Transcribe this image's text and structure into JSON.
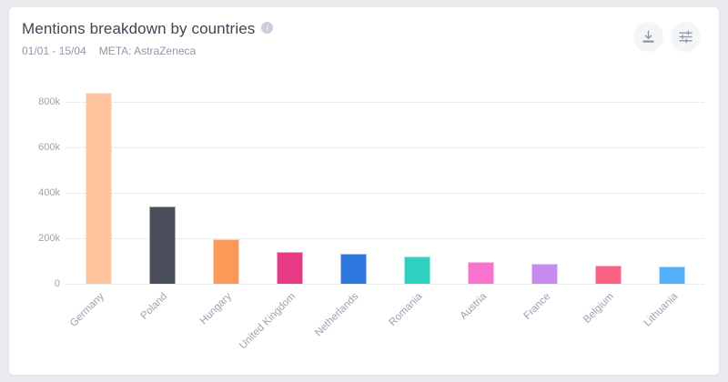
{
  "header": {
    "title": "Mentions breakdown by countries",
    "info_icon": "i",
    "date_range": "01/01 - 15/04",
    "meta": "META: AstraZeneca"
  },
  "toolbar": {
    "download_icon": "download-icon",
    "settings_icon": "sliders-icon"
  },
  "chart_data": {
    "type": "bar",
    "title": "Mentions breakdown by countries",
    "categories": [
      "Germany",
      "Poland",
      "Hungary",
      "United Kingdom",
      "Netherlands",
      "Romania",
      "Austria",
      "France",
      "Belgium",
      "Lithuania"
    ],
    "values": [
      840000,
      340000,
      197000,
      140000,
      132000,
      120000,
      98000,
      88000,
      80000,
      76000
    ],
    "bar_colors": [
      "#FDC49E",
      "#4A4E5A",
      "#FB9A58",
      "#E83984",
      "#2F78E0",
      "#2FD1C3",
      "#F973CE",
      "#C78BF0",
      "#FB6384",
      "#55AFF8"
    ],
    "xlabel": "",
    "ylabel": "",
    "ylim": [
      0,
      864000
    ],
    "yticks": [
      0,
      200000,
      400000,
      600000,
      800000
    ],
    "ytick_labels": [
      "0",
      "200k",
      "400k",
      "600k",
      "800k"
    ],
    "grid": "horizontal-dotted",
    "legend": "none",
    "x_label_rotation": -45
  },
  "colors": {
    "page_bg": "#E9EAEE",
    "card_bg": "#FFFFFF",
    "title_text": "#3F4552",
    "subtitle_text": "#9098A6",
    "axis_text": "#9AA2B1",
    "gridline": "#D5D8DE",
    "icon": "#8F96A3",
    "icon_button_bg": "#F3F5F7",
    "info_icon_bg": "#C9CED8"
  }
}
